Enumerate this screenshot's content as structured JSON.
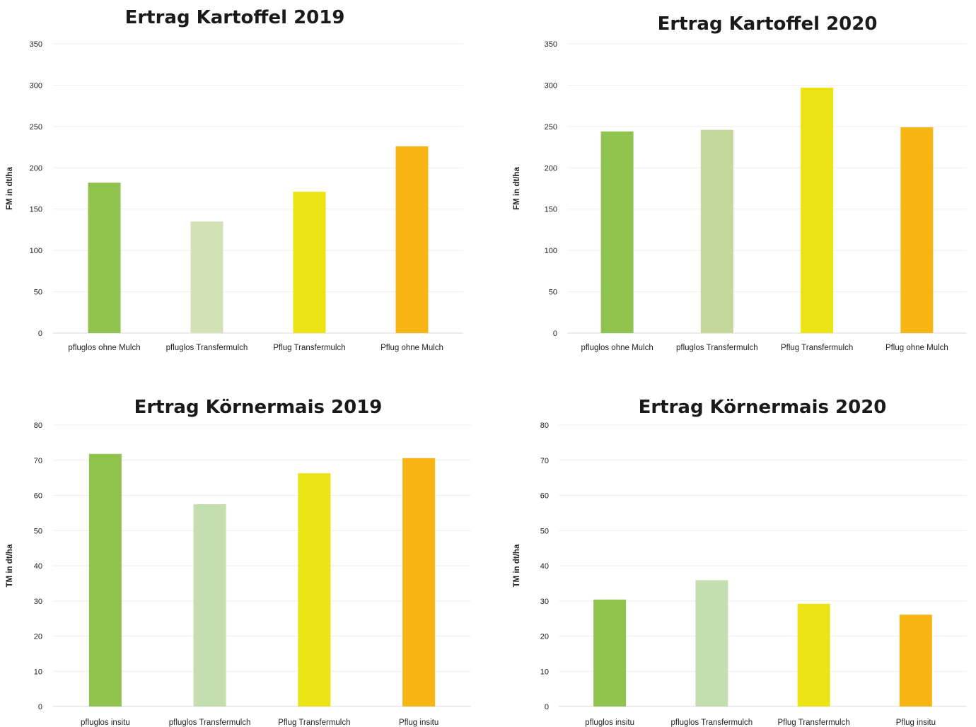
{
  "colors": [
    "#8fc34d",
    "#d3e2b6",
    "#ebe314",
    "#f6b513"
  ],
  "chart_data": [
    {
      "type": "bar",
      "title": "Ertrag Kartoffel 2019",
      "ylabel": "FM in dt/ha",
      "ylim": [
        0,
        350
      ],
      "yticks": [
        0,
        50,
        100,
        150,
        200,
        250,
        300,
        350
      ],
      "categories": [
        "pfluglos ohne Mulch",
        "pfluglos Transfermulch",
        "Pflug Transfermulch",
        "Pflug ohne Mulch"
      ],
      "values": [
        182,
        135,
        171,
        226
      ],
      "colors": [
        "#8fc34d",
        "#d3e2b6",
        "#ebe314",
        "#f6b513"
      ],
      "grid": true
    },
    {
      "type": "bar",
      "title": "Ertrag Kartoffel 2020",
      "ylabel": "FM in dt/ha",
      "ylim": [
        0,
        350
      ],
      "yticks": [
        0,
        50,
        100,
        150,
        200,
        250,
        300,
        350
      ],
      "categories": [
        "pfluglos ohne Mulch",
        "pfluglos Transfermulch",
        "Pflug Transfermulch",
        "Pflug ohne Mulch"
      ],
      "values": [
        244,
        246,
        297,
        249
      ],
      "colors": [
        "#8fc34d",
        "#c3d89a",
        "#ebe314",
        "#f6b513"
      ],
      "grid": true
    },
    {
      "type": "bar",
      "title": "Ertrag Körnermais 2019",
      "ylabel": "TM in dt/ha",
      "ylim": [
        0,
        80
      ],
      "yticks": [
        0,
        10,
        20,
        30,
        40,
        50,
        60,
        70,
        80
      ],
      "categories": [
        "pfluglos insitu",
        "pfluglos Transfermulch",
        "Pflug Transfermulch",
        "Pflug insitu"
      ],
      "values": [
        71.8,
        57.5,
        66.3,
        70.6
      ],
      "colors": [
        "#8fc34d",
        "#c4deb0",
        "#ebe314",
        "#f6b513"
      ],
      "grid": true
    },
    {
      "type": "bar",
      "title": "Ertrag Körnermais 2020",
      "ylabel": "TM in dt/ha",
      "ylim": [
        0,
        80
      ],
      "yticks": [
        0,
        10,
        20,
        30,
        40,
        50,
        60,
        70,
        80
      ],
      "categories": [
        "pfluglos insitu",
        "pfluglos Transfermulch",
        "Pflug Transfermulch",
        "Pflug insitu"
      ],
      "values": [
        30.4,
        35.9,
        29.2,
        26.1
      ],
      "colors": [
        "#8fc34d",
        "#c4deb0",
        "#ebe314",
        "#f6b513"
      ],
      "grid": true
    }
  ]
}
